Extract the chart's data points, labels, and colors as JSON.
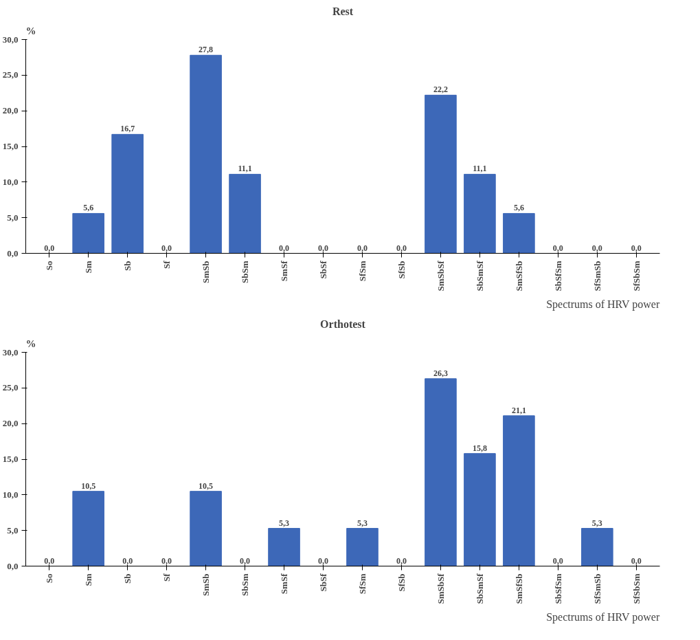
{
  "chart_data": [
    {
      "type": "bar",
      "title": "Rest",
      "ylabel": "%",
      "xlabel": "Spectrums of HRV power",
      "categories": [
        "So",
        "Sm",
        "Sb",
        "Sf",
        "SmSb",
        "SbSm",
        "SmSf",
        "SbSf",
        "SfSm",
        "SfSb",
        "SmSbSf",
        "SbSmSf",
        "SmSfSb",
        "SbSfSm",
        "SfSmSb",
        "SfSbSm"
      ],
      "values": [
        0,
        5.6,
        16.7,
        0,
        27.8,
        11.1,
        0,
        0,
        0,
        0,
        22.2,
        11.1,
        5.6,
        0,
        0,
        0
      ],
      "value_labels": [
        "0,0",
        "5,6",
        "16,7",
        "0,0",
        "27,8",
        "11,1",
        "0,0",
        "0,0",
        "0,0",
        "0,0",
        "22,2",
        "11,1",
        "5,6",
        "0,0",
        "0,0",
        "0,0"
      ],
      "color": "#3d68b8",
      "ylim": [
        0,
        30
      ],
      "yticks": [
        {
          "value": 0,
          "label": "0,0"
        },
        {
          "value": 5,
          "label": "5,0"
        },
        {
          "value": 10,
          "label": "10,0"
        },
        {
          "value": 15,
          "label": "15,0"
        },
        {
          "value": 20,
          "label": "20,0"
        },
        {
          "value": 25,
          "label": "25,0"
        },
        {
          "value": 30,
          "label": "30,0"
        }
      ],
      "grid": false
    },
    {
      "type": "bar",
      "title": "Orthotest",
      "ylabel": "%",
      "xlabel": "Spectrums of HRV power",
      "categories": [
        "So",
        "Sm",
        "Sb",
        "Sf",
        "SmSb",
        "SbSm",
        "SmSf",
        "SbSf",
        "SfSm",
        "SfSb",
        "SmSbSf",
        "SbSmSf",
        "SmSfSb",
        "SbSfSm",
        "SfSmSb",
        "SfSbSm"
      ],
      "values": [
        0,
        10.5,
        0,
        0,
        10.5,
        0,
        5.3,
        0,
        5.3,
        0,
        26.3,
        15.8,
        21.1,
        0,
        5.3,
        0
      ],
      "value_labels": [
        "0,0",
        "10,5",
        "0,0",
        "0,0",
        "10,5",
        "0,0",
        "5,3",
        "0,0",
        "5,3",
        "0,0",
        "26,3",
        "15,8",
        "21,1",
        "0,0",
        "5,3",
        "0,0"
      ],
      "color": "#3d68b8",
      "ylim": [
        0,
        30
      ],
      "yticks": [
        {
          "value": 0,
          "label": "0,0"
        },
        {
          "value": 5,
          "label": "5,0"
        },
        {
          "value": 10,
          "label": "10,0"
        },
        {
          "value": 15,
          "label": "15,0"
        },
        {
          "value": 20,
          "label": "20,0"
        },
        {
          "value": 25,
          "label": "25,0"
        },
        {
          "value": 30,
          "label": "30,0"
        }
      ],
      "grid": false
    }
  ]
}
